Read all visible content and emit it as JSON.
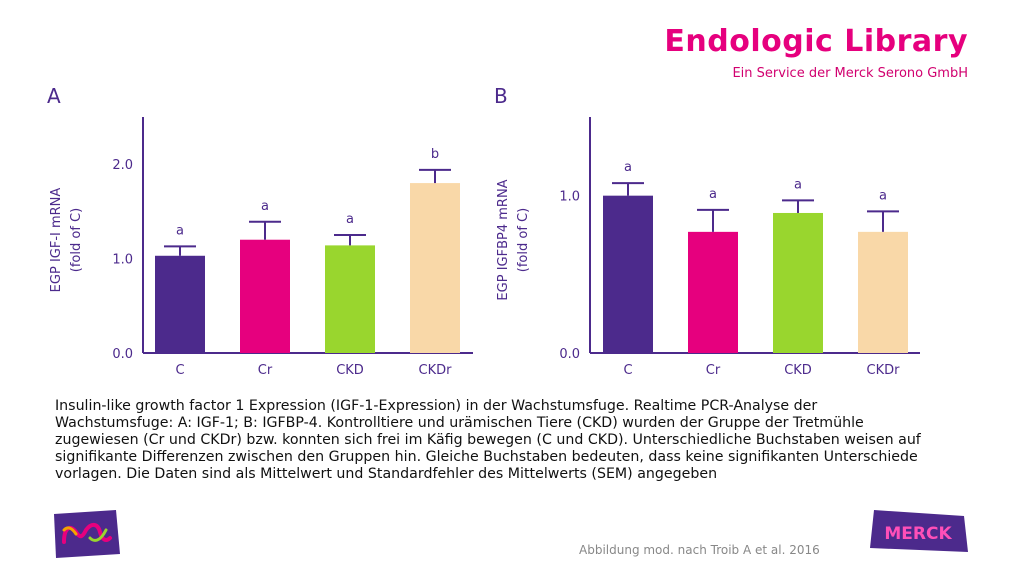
{
  "header": {
    "title": "Endologic Library",
    "subtitle": "Ein Service der Merck Serono GmbH"
  },
  "panels": {
    "a": "A",
    "b": "B"
  },
  "caption": {
    "lines": [
      "Insulin-like growth factor 1 Expression (IGF-1-Expression) in der Wachstumsfuge. Realtime PCR-Analyse der",
      "Wachstumsfuge: A: IGF-1; B: IGFBP-4. Kontrolltiere und urämischen Tiere (CKD) wurden der Gruppe der Tretmühle",
      "zugewiesen (Cr und CKDr) bzw. konnten sich frei im Käfig bewegen (C und CKD). Unterschiedliche Buchstaben weisen auf",
      "signifikante Differenzen zwischen den Gruppen hin. Gleiche Buchstaben bedeuten, dass keine signifikanten Unterschiede",
      "vorlagen. Die Daten sind als Mittelwert und Standardfehler des Mittelwerts (SEM) angegeben"
    ]
  },
  "source": "Abbildung mod. nach Troib A et al. 2016",
  "logos": {
    "merck_text": "MERCK"
  },
  "colors": {
    "purple": "#4c2a8c",
    "pink": "#e6007e",
    "green": "#99d62e",
    "peach": "#f9d8a8",
    "axis": "#4c2a8c"
  },
  "chart_data": [
    {
      "type": "bar",
      "panel": "A",
      "categories": [
        "C",
        "Cr",
        "CKD",
        "CKDr"
      ],
      "values": [
        1.03,
        1.2,
        1.14,
        1.8
      ],
      "errors": [
        0.1,
        0.19,
        0.11,
        0.14
      ],
      "sig_letters": [
        "a",
        "a",
        "a",
        "b"
      ],
      "colors": [
        "#4c2a8c",
        "#e6007e",
        "#99d62e",
        "#f9d8a8"
      ],
      "ylabel": [
        "EGP IGF-I mRNA",
        "(fold of C)"
      ],
      "ylim": [
        0,
        2.5
      ],
      "yticks": [
        0,
        1,
        2
      ],
      "ytick_labels": [
        "0.0",
        "1.0",
        "2.0"
      ]
    },
    {
      "type": "bar",
      "panel": "B",
      "categories": [
        "C",
        "Cr",
        "CKD",
        "CKDr"
      ],
      "values": [
        1.0,
        0.77,
        0.89,
        0.77
      ],
      "errors": [
        0.08,
        0.14,
        0.08,
        0.13
      ],
      "sig_letters": [
        "a",
        "a",
        "a",
        "a"
      ],
      "colors": [
        "#4c2a8c",
        "#e6007e",
        "#99d62e",
        "#f9d8a8"
      ],
      "ylabel": [
        "EGP IGFBP4 mRNA",
        "(fold of C)"
      ],
      "ylim": [
        0,
        1.5
      ],
      "yticks": [
        0,
        1
      ],
      "ytick_labels": [
        "0.0",
        "1.0"
      ]
    }
  ]
}
